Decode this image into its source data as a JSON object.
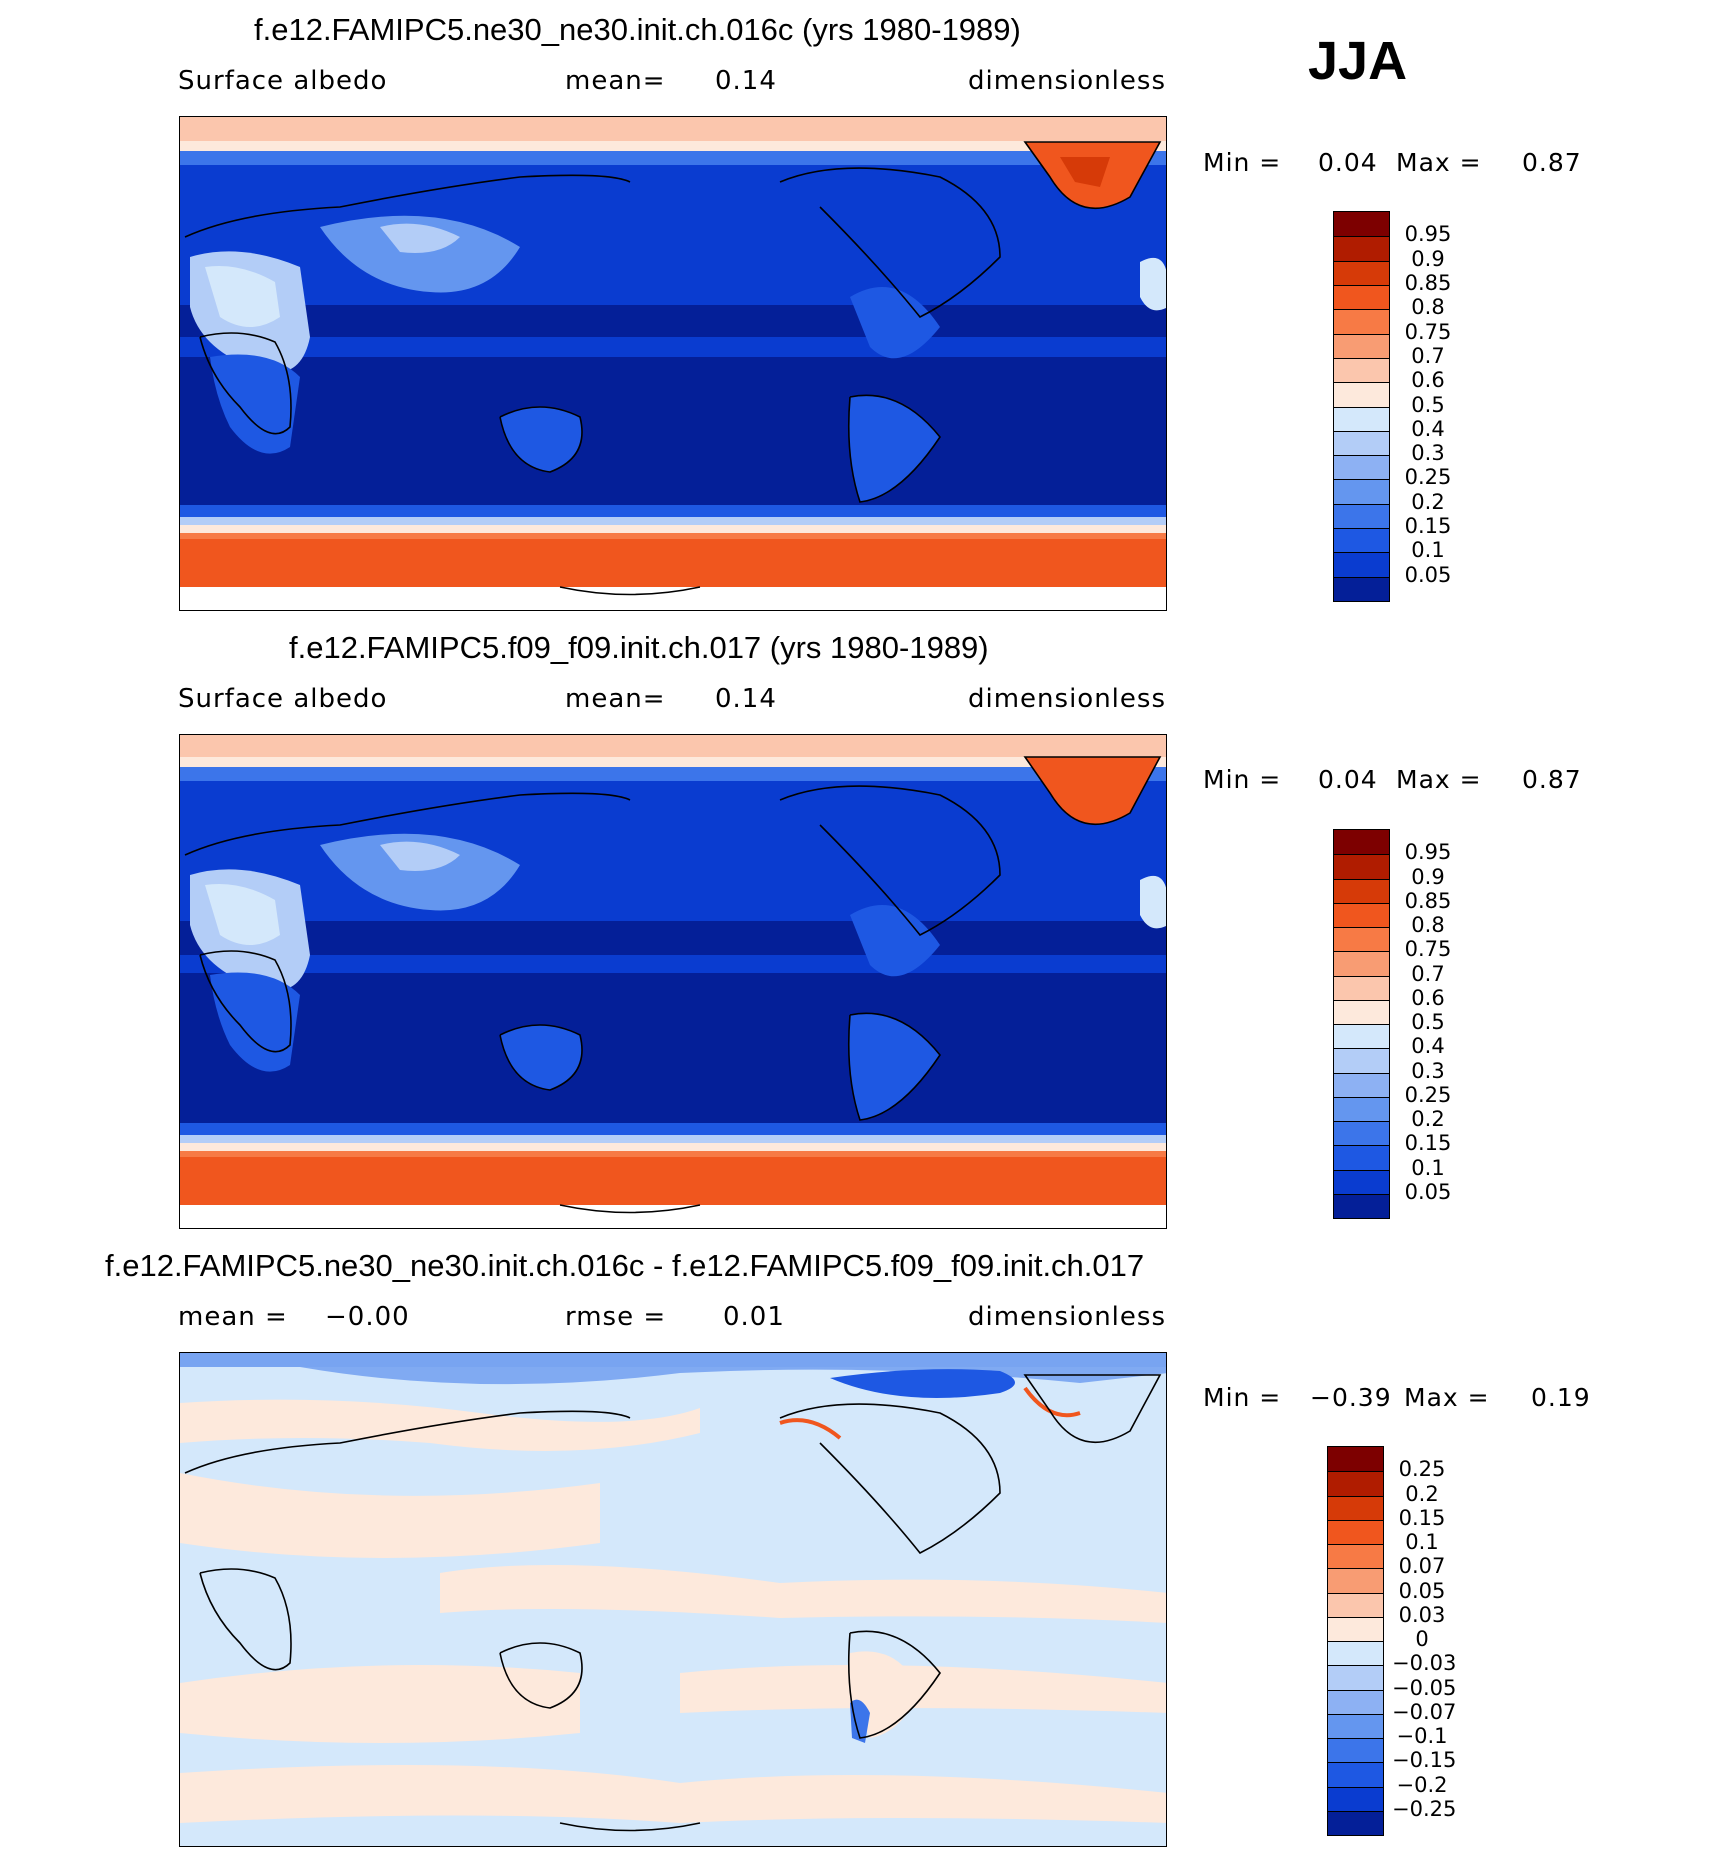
{
  "season": "JJA",
  "panels": [
    {
      "title": "f.e12.FAMIPC5.ne30_ne30.init.ch.016c (yrs 1980-1989)",
      "left_label": "Surface albedo",
      "center_label": "mean=",
      "center_value": "0.14",
      "right_label": "dimensionless",
      "min_label": "Min =",
      "min_value": "0.04",
      "max_label": "Max =",
      "max_value": "0.87",
      "colorbar_labels": [
        "0.95",
        "0.9",
        "0.85",
        "0.8",
        "0.75",
        "0.7",
        "0.6",
        "0.5",
        "0.4",
        "0.3",
        "0.25",
        "0.2",
        "0.15",
        "0.1",
        "0.05"
      ],
      "colorbar_colors": [
        "#7d0000",
        "#b01c00",
        "#d63a08",
        "#f0561e",
        "#f77a45",
        "#f89c73",
        "#fbc6ad",
        "#fde9dc",
        "#d4e8fb",
        "#b3cdf7",
        "#8db1f3",
        "#6496ef",
        "#3c75ea",
        "#1e58e3",
        "#0a3cd0",
        "#041f98"
      ]
    },
    {
      "title": "f.e12.FAMIPC5.f09_f09.init.ch.017 (yrs 1980-1989)",
      "left_label": "Surface albedo",
      "center_label": "mean=",
      "center_value": "0.14",
      "right_label": "dimensionless",
      "min_label": "Min =",
      "min_value": "0.04",
      "max_label": "Max =",
      "max_value": "0.87",
      "colorbar_labels": [
        "0.95",
        "0.9",
        "0.85",
        "0.8",
        "0.75",
        "0.7",
        "0.6",
        "0.5",
        "0.4",
        "0.3",
        "0.25",
        "0.2",
        "0.15",
        "0.1",
        "0.05"
      ],
      "colorbar_colors": [
        "#7d0000",
        "#b01c00",
        "#d63a08",
        "#f0561e",
        "#f77a45",
        "#f89c73",
        "#fbc6ad",
        "#fde9dc",
        "#d4e8fb",
        "#b3cdf7",
        "#8db1f3",
        "#6496ef",
        "#3c75ea",
        "#1e58e3",
        "#0a3cd0",
        "#041f98"
      ]
    },
    {
      "title": "f.e12.FAMIPC5.ne30_ne30.init.ch.016c - f.e12.FAMIPC5.f09_f09.init.ch.017",
      "left_label": "mean =",
      "left_value": "−0.00",
      "center_label": "rmse =",
      "center_value": "0.01",
      "right_label": "dimensionless",
      "min_label": "Min =",
      "min_value": "−0.39",
      "max_label": "Max =",
      "max_value": "0.19",
      "colorbar_labels": [
        "0.25",
        "0.2",
        "0.15",
        "0.1",
        "0.07",
        "0.05",
        "0.03",
        "0",
        "−0.03",
        "−0.05",
        "−0.07",
        "−0.1",
        "−0.15",
        "−0.2",
        "−0.25"
      ],
      "colorbar_colors": [
        "#7d0000",
        "#b01c00",
        "#d63a08",
        "#f0561e",
        "#f77a45",
        "#f89c73",
        "#fbc6ad",
        "#fde9dc",
        "#d4e8fb",
        "#b3cdf7",
        "#8db1f3",
        "#6496ef",
        "#3c75ea",
        "#1e58e3",
        "#0a3cd0",
        "#041f98"
      ]
    }
  ],
  "chart_data": [
    {
      "type": "heatmap",
      "title": "f.e12.FAMIPC5.ne30_ne30.init.ch.016c (yrs 1980-1989)",
      "variable": "Surface albedo",
      "units": "dimensionless",
      "mean": 0.14,
      "min": 0.04,
      "max": 0.87,
      "levels": [
        0.05,
        0.1,
        0.15,
        0.2,
        0.25,
        0.3,
        0.4,
        0.5,
        0.6,
        0.7,
        0.75,
        0.8,
        0.85,
        0.9,
        0.95
      ]
    },
    {
      "type": "heatmap",
      "title": "f.e12.FAMIPC5.f09_f09.init.ch.017 (yrs 1980-1989)",
      "variable": "Surface albedo",
      "units": "dimensionless",
      "mean": 0.14,
      "min": 0.04,
      "max": 0.87,
      "levels": [
        0.05,
        0.1,
        0.15,
        0.2,
        0.25,
        0.3,
        0.4,
        0.5,
        0.6,
        0.7,
        0.75,
        0.8,
        0.85,
        0.9,
        0.95
      ]
    },
    {
      "type": "heatmap",
      "title": "f.e12.FAMIPC5.ne30_ne30.init.ch.016c - f.e12.FAMIPC5.f09_f09.init.ch.017",
      "units": "dimensionless",
      "mean": -0.0,
      "rmse": 0.01,
      "min": -0.39,
      "max": 0.19,
      "levels": [
        -0.25,
        -0.2,
        -0.15,
        -0.1,
        -0.07,
        -0.05,
        -0.03,
        0,
        0.03,
        0.05,
        0.07,
        0.1,
        0.15,
        0.2,
        0.25
      ]
    }
  ]
}
